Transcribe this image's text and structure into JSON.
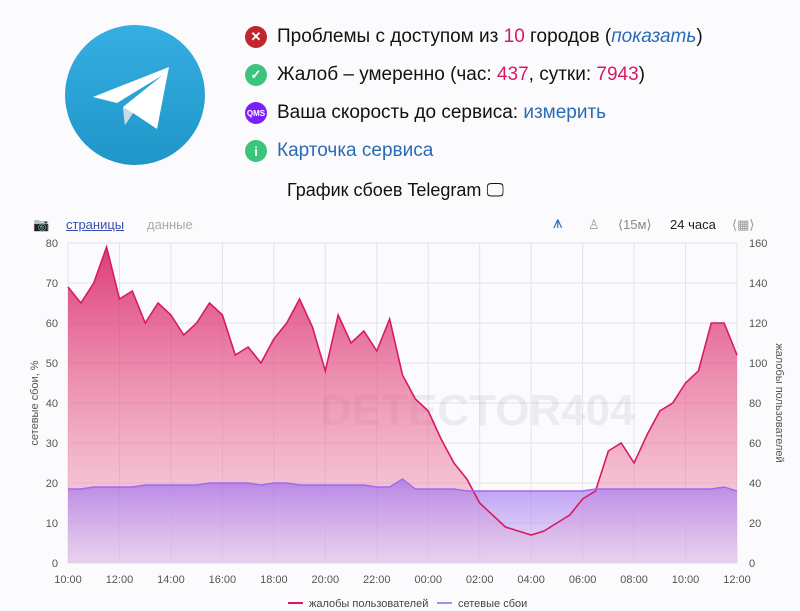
{
  "header": {
    "status_lines": [
      {
        "icon": "error-icon",
        "pre": "Проблемы с доступом из ",
        "num": "10",
        "post": " городов (",
        "link": "показать",
        "end": ")"
      },
      {
        "icon": "check-icon",
        "pre": "Жалоб – умеренно (час: ",
        "num": "437",
        "mid": ", сутки: ",
        "num2": "7943",
        "end": ")"
      },
      {
        "icon": "qms-icon",
        "icon_text": "QMS",
        "pre": "Ваша скорость до сервиса: ",
        "link": "измерить"
      },
      {
        "icon": "info-icon",
        "icon_text": "i",
        "link": "Карточка сервиса"
      }
    ],
    "chart_title": "График сбоев Telegram"
  },
  "toolbar": {
    "tab_pages": "страницы",
    "tab_data": "данные",
    "interval": "⟨15м⟩",
    "range": "24 часа"
  },
  "colors": {
    "complaints": "#d81b60",
    "network": "#a78bfa",
    "accent": "#1e96c8"
  },
  "watermark": "DETECTOR404",
  "chart_data": {
    "type": "area",
    "ylabel": "сетевые сбои, %",
    "y2label": "жалобы пользователей",
    "ylim": [
      0,
      80
    ],
    "y2lim": [
      0,
      160
    ],
    "yticks": [
      "0",
      "10",
      "20",
      "30",
      "40",
      "50",
      "60",
      "70",
      "80"
    ],
    "y2ticks": [
      "0",
      "20",
      "40",
      "60",
      "80",
      "100",
      "120",
      "140",
      "160"
    ],
    "xticks": [
      "10:00",
      "12:00",
      "14:00",
      "16:00",
      "18:00",
      "20:00",
      "22:00",
      "00:00",
      "02:00",
      "04:00",
      "06:00",
      "08:00",
      "10:00",
      "12:00"
    ],
    "grid": true,
    "legend": "bottom",
    "x": [
      "10:00",
      "10:30",
      "11:00",
      "11:30",
      "12:00",
      "12:30",
      "13:00",
      "13:30",
      "14:00",
      "14:30",
      "15:00",
      "15:30",
      "16:00",
      "16:30",
      "17:00",
      "17:30",
      "18:00",
      "18:30",
      "19:00",
      "19:30",
      "20:00",
      "20:30",
      "21:00",
      "21:30",
      "22:00",
      "22:30",
      "23:00",
      "23:30",
      "00:00",
      "00:30",
      "01:00",
      "01:30",
      "02:00",
      "02:30",
      "03:00",
      "03:30",
      "04:00",
      "04:30",
      "05:00",
      "05:30",
      "06:00",
      "06:30",
      "07:00",
      "07:30",
      "08:00",
      "08:30",
      "09:00",
      "09:30",
      "10:00",
      "10:30",
      "11:00",
      "11:30",
      "12:00"
    ],
    "series": [
      {
        "name": "жалобы пользователей",
        "axis": "right",
        "values": [
          138,
          130,
          140,
          158,
          132,
          136,
          120,
          130,
          124,
          114,
          120,
          130,
          124,
          104,
          108,
          100,
          112,
          120,
          132,
          118,
          96,
          124,
          110,
          116,
          106,
          122,
          94,
          82,
          76,
          62,
          50,
          42,
          30,
          24,
          18,
          16,
          14,
          16,
          20,
          24,
          32,
          36,
          56,
          60,
          50,
          64,
          76,
          80,
          90,
          96,
          120,
          120,
          104
        ]
      },
      {
        "name": "сетевые сбои",
        "axis": "left",
        "values": [
          18.5,
          18.5,
          19,
          19,
          19,
          19,
          19.5,
          19.5,
          19.5,
          19.5,
          19.5,
          20,
          20,
          20,
          20,
          19.5,
          20,
          20,
          19.5,
          19.5,
          19.5,
          19.5,
          19.5,
          19.5,
          19,
          19,
          21,
          18.5,
          18.5,
          18.5,
          18.5,
          18,
          18,
          18,
          18,
          18,
          18,
          18,
          18,
          18,
          18,
          18.5,
          18.5,
          18.5,
          18.5,
          18.5,
          18.5,
          18.5,
          18.5,
          18.5,
          18.5,
          19,
          18
        ]
      }
    ]
  }
}
